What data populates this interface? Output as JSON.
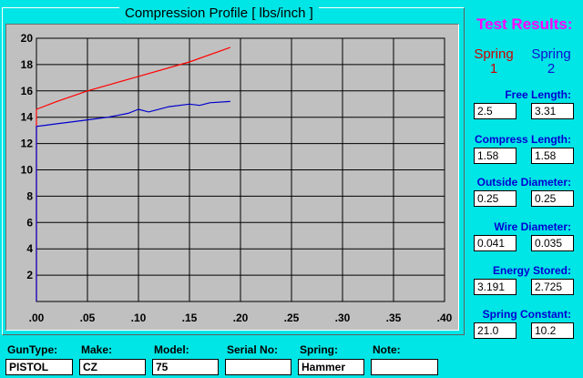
{
  "chart": {
    "title": "Compression Profile [ lbs/inch ]"
  },
  "chart_data": {
    "type": "line",
    "title": "Compression Profile [ lbs/inch ]",
    "xlim": [
      0,
      0.4
    ],
    "ylim": [
      0,
      20
    ],
    "x_ticks": [
      0,
      0.05,
      0.1,
      0.15,
      0.2,
      0.25,
      0.3,
      0.35,
      0.4
    ],
    "x_tick_labels": [
      ".00",
      ".05",
      ".10",
      ".15",
      ".20",
      ".25",
      ".30",
      ".35",
      ".40"
    ],
    "y_ticks": [
      2,
      4,
      6,
      8,
      10,
      12,
      14,
      16,
      18,
      20
    ],
    "y_tick_labels": [
      "2",
      "4",
      "6",
      "8",
      "10",
      "12",
      "14",
      "16",
      "18",
      "20"
    ],
    "grid": true,
    "series": [
      {
        "color": "#ff0000",
        "x": [
          0.0,
          0.0,
          0.02,
          0.05,
          0.1,
          0.15,
          0.19
        ],
        "y": [
          0.0,
          14.6,
          15.2,
          16.0,
          17.1,
          18.2,
          19.3
        ]
      },
      {
        "color": "#0000cc",
        "x": [
          0.0,
          0.0,
          0.01,
          0.02,
          0.03,
          0.05,
          0.07,
          0.09,
          0.1,
          0.11,
          0.13,
          0.15,
          0.16,
          0.17,
          0.19
        ],
        "y": [
          0.0,
          13.3,
          13.4,
          13.5,
          13.6,
          13.8,
          14.0,
          14.3,
          14.6,
          14.4,
          14.8,
          15.0,
          14.9,
          15.1,
          15.2
        ]
      }
    ]
  },
  "results": {
    "title": "Test Results:",
    "spring1_line1": "Spring",
    "spring1_line2": "1",
    "spring2_line1": "Spring",
    "spring2_line2": "2",
    "spring1_color": "#d00000",
    "spring2_color": "#1010d0",
    "fields": [
      {
        "label": "Free Length:",
        "v1": "2.5",
        "v2": "3.31"
      },
      {
        "label": "Compress Length:",
        "v1": "1.58",
        "v2": "1.58"
      },
      {
        "label": "Outside Diameter:",
        "v1": "0.25",
        "v2": "0.25"
      },
      {
        "label": "Wire Diameter:",
        "v1": "0.041",
        "v2": "0.035"
      },
      {
        "label": "Energy Stored:",
        "v1": "3.191",
        "v2": "2.725"
      },
      {
        "label": "Spring Constant:",
        "v1": "21.0",
        "v2": "10.2"
      }
    ]
  },
  "info": {
    "guntype_label": "GunType:",
    "guntype_value": "PISTOL",
    "make_label": "Make:",
    "make_value": "CZ",
    "model_label": "Model:",
    "model_value": "75",
    "serial_label": "Serial No:",
    "serial_value": "",
    "spring_label": "Spring:",
    "spring_value": "Hammer",
    "note_label": "Note:",
    "note_value": ""
  },
  "colors": {
    "background": "#00e5e5",
    "plot_background": "#c0c0c0",
    "title_magenta": "#ff00ff",
    "label_blue": "#0000d0"
  }
}
